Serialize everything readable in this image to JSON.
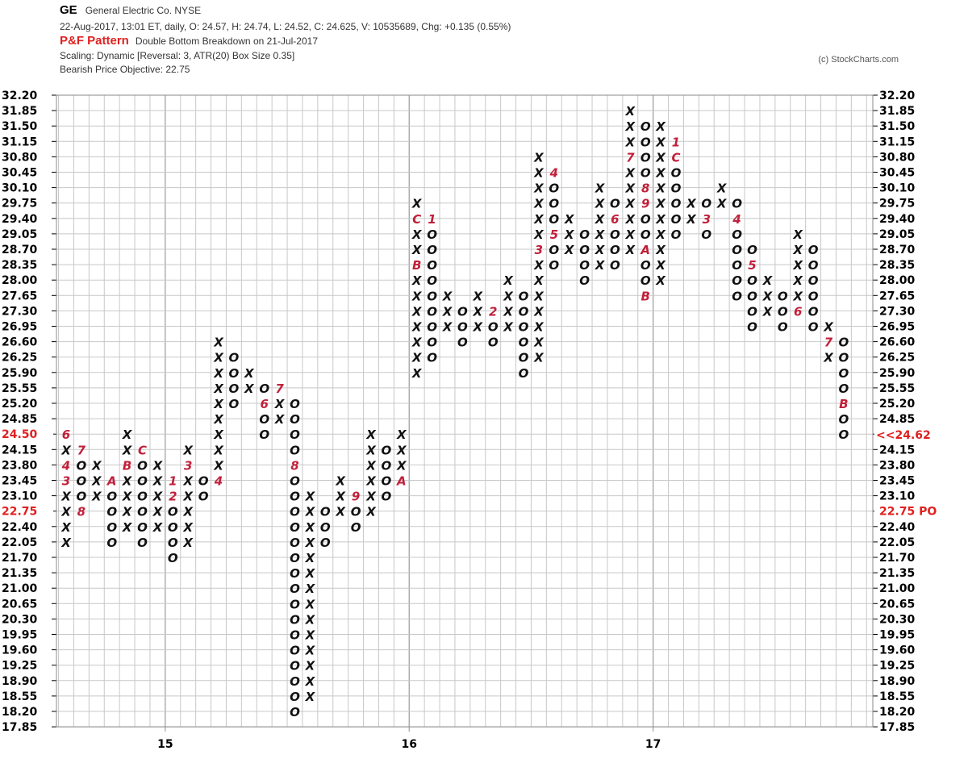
{
  "header": {
    "symbol": "GE",
    "company": "General Electric Co.  NYSE",
    "quote_line": "22-Aug-2017, 13:01 ET, daily, O: 24.57, H: 24.74, L: 24.52, C: 24.625, V: 10535689, Chg: +0.135 (0.55%)",
    "pf_label": "P&F Pattern",
    "pf_pattern": "Double Bottom Breakdown on 21-Jul-2017",
    "scaling": "Scaling: Dynamic [Reversal: 3, ATR(20) Box Size 0.35]",
    "objective": "Bearish Price Objective: 22.75",
    "copyright": "(c) StockCharts.com"
  },
  "colors": {
    "mark": "#111111",
    "month_marker": "#c0203a",
    "highlight": "#e02020",
    "grid": "#c8c8c8",
    "major_grid": "#a0a0a0"
  },
  "chart_data": {
    "type": "point-and-figure",
    "box_size": 0.35,
    "reversal": 3,
    "ylim": [
      17.85,
      32.2
    ],
    "y_ticks": [
      "32.20",
      "31.85",
      "31.50",
      "31.15",
      "30.80",
      "30.45",
      "30.10",
      "29.75",
      "29.40",
      "29.05",
      "28.70",
      "28.35",
      "28.00",
      "27.65",
      "27.30",
      "26.95",
      "26.60",
      "26.25",
      "25.90",
      "25.55",
      "25.20",
      "24.85",
      "24.50",
      "24.15",
      "23.80",
      "23.45",
      "23.10",
      "22.75",
      "22.40",
      "22.05",
      "21.70",
      "21.35",
      "21.00",
      "20.65",
      "20.30",
      "19.95",
      "19.60",
      "19.25",
      "18.90",
      "18.55",
      "18.20",
      "17.85"
    ],
    "highlight_left": {
      "price": "24.50",
      "label": "24.50"
    },
    "highlight_po_left": {
      "price": "22.75",
      "label": "22.75"
    },
    "right_current": "<<24.62",
    "right_po": "22.75 PO",
    "year_labels": [
      {
        "label": "15",
        "col": 7
      },
      {
        "label": "16",
        "col": 23
      },
      {
        "label": "17",
        "col": 39
      }
    ],
    "columns": [
      {
        "col": 0,
        "type": "X",
        "from": "22.05",
        "to": "24.50",
        "markers": {
          "24.50": "6",
          "23.80": "4",
          "23.45": "3"
        }
      },
      {
        "col": 1,
        "type": "O",
        "from": "22.75",
        "to": "24.15",
        "markers": {
          "24.15": "7",
          "22.75": "8"
        }
      },
      {
        "col": 2,
        "type": "X",
        "from": "23.10",
        "to": "23.80"
      },
      {
        "col": 3,
        "type": "O",
        "from": "22.05",
        "to": "23.45",
        "markers": {
          "23.45": "A"
        }
      },
      {
        "col": 4,
        "type": "X",
        "from": "22.40",
        "to": "24.50",
        "markers": {
          "23.80": "B"
        }
      },
      {
        "col": 5,
        "type": "O",
        "from": "22.05",
        "to": "24.15",
        "markers": {
          "24.15": "C"
        }
      },
      {
        "col": 6,
        "type": "X",
        "from": "22.40",
        "to": "23.80"
      },
      {
        "col": 7,
        "type": "O",
        "from": "21.70",
        "to": "23.45",
        "markers": {
          "23.45": "1",
          "23.10": "2"
        }
      },
      {
        "col": 8,
        "type": "X",
        "from": "22.05",
        "to": "24.15",
        "markers": {
          "23.80": "3"
        }
      },
      {
        "col": 9,
        "type": "O",
        "from": "23.10",
        "to": "23.45"
      },
      {
        "col": 10,
        "type": "X",
        "from": "23.45",
        "to": "26.60",
        "markers": {
          "23.45": "4"
        }
      },
      {
        "col": 11,
        "type": "O",
        "from": "25.20",
        "to": "26.25"
      },
      {
        "col": 12,
        "type": "X",
        "from": "25.55",
        "to": "25.90"
      },
      {
        "col": 13,
        "type": "O",
        "from": "24.50",
        "to": "25.55",
        "markers": {
          "25.20": "6"
        }
      },
      {
        "col": 14,
        "type": "X",
        "from": "24.85",
        "to": "25.55",
        "markers": {
          "25.55": "7"
        }
      },
      {
        "col": 15,
        "type": "O",
        "from": "18.20",
        "to": "25.20",
        "markers": {
          "23.80": "8"
        }
      },
      {
        "col": 16,
        "type": "X",
        "from": "18.55",
        "to": "23.10"
      },
      {
        "col": 17,
        "type": "O",
        "from": "22.05",
        "to": "22.75"
      },
      {
        "col": 18,
        "type": "X",
        "from": "22.75",
        "to": "23.45"
      },
      {
        "col": 19,
        "type": "O",
        "from": "22.40",
        "to": "23.10",
        "markers": {
          "23.10": "9"
        }
      },
      {
        "col": 20,
        "type": "X",
        "from": "22.75",
        "to": "24.50"
      },
      {
        "col": 21,
        "type": "O",
        "from": "23.10",
        "to": "24.15"
      },
      {
        "col": 22,
        "type": "X",
        "from": "23.45",
        "to": "24.50",
        "markers": {
          "23.45": "A"
        }
      },
      {
        "col": 23,
        "type": "X",
        "from": "25.90",
        "to": "29.75",
        "markers": {
          "29.40": "C",
          "28.35": "B"
        }
      },
      {
        "col": 24,
        "type": "O",
        "from": "26.25",
        "to": "29.40",
        "markers": {
          "29.40": "1"
        }
      },
      {
        "col": 25,
        "type": "X",
        "from": "26.95",
        "to": "27.65"
      },
      {
        "col": 26,
        "type": "O",
        "from": "26.60",
        "to": "27.30"
      },
      {
        "col": 27,
        "type": "X",
        "from": "26.95",
        "to": "27.65"
      },
      {
        "col": 28,
        "type": "O",
        "from": "26.60",
        "to": "27.30",
        "markers": {
          "27.30": "2"
        }
      },
      {
        "col": 29,
        "type": "X",
        "from": "26.95",
        "to": "28.00"
      },
      {
        "col": 30,
        "type": "O",
        "from": "25.90",
        "to": "27.65"
      },
      {
        "col": 31,
        "type": "X",
        "from": "26.25",
        "to": "30.80",
        "markers": {
          "28.70": "3"
        }
      },
      {
        "col": 32,
        "type": "O",
        "from": "28.35",
        "to": "30.45",
        "markers": {
          "30.45": "4",
          "29.05": "5"
        }
      },
      {
        "col": 33,
        "type": "X",
        "from": "28.70",
        "to": "29.40"
      },
      {
        "col": 34,
        "type": "O",
        "from": "28.00",
        "to": "29.05"
      },
      {
        "col": 35,
        "type": "X",
        "from": "28.35",
        "to": "30.10"
      },
      {
        "col": 36,
        "type": "O",
        "from": "28.35",
        "to": "29.75",
        "markers": {
          "29.40": "6"
        }
      },
      {
        "col": 37,
        "type": "X",
        "from": "28.70",
        "to": "31.85",
        "markers": {
          "30.80": "7"
        }
      },
      {
        "col": 38,
        "type": "O",
        "from": "27.65",
        "to": "31.50",
        "markers": {
          "30.10": "8",
          "29.75": "9",
          "28.70": "A",
          "27.65": "B"
        }
      },
      {
        "col": 39,
        "type": "X",
        "from": "28.00",
        "to": "31.50"
      },
      {
        "col": 40,
        "type": "O",
        "from": "29.05",
        "to": "31.15",
        "markers": {
          "31.15": "1",
          "30.80": "C"
        }
      },
      {
        "col": 41,
        "type": "X",
        "from": "29.40",
        "to": "29.75"
      },
      {
        "col": 42,
        "type": "O",
        "from": "29.05",
        "to": "29.75",
        "markers": {
          "29.40": "3"
        }
      },
      {
        "col": 43,
        "type": "X",
        "from": "29.75",
        "to": "30.10"
      },
      {
        "col": 44,
        "type": "O",
        "from": "27.65",
        "to": "29.75",
        "markers": {
          "29.40": "4"
        }
      },
      {
        "col": 45,
        "type": "O",
        "from": "26.95",
        "to": "28.70",
        "markers": {
          "28.35": "5"
        }
      },
      {
        "col": 46,
        "type": "X",
        "from": "27.30",
        "to": "28.00"
      },
      {
        "col": 47,
        "type": "O",
        "from": "26.95",
        "to": "27.65"
      },
      {
        "col": 48,
        "type": "X",
        "from": "27.30",
        "to": "29.05",
        "markers": {
          "27.30": "6"
        }
      },
      {
        "col": 49,
        "type": "O",
        "from": "26.95",
        "to": "28.70"
      },
      {
        "col": 50,
        "type": "X",
        "from": "26.25",
        "to": "26.95",
        "markers": {
          "26.60": "7"
        }
      },
      {
        "col": 51,
        "type": "O",
        "from": "24.50",
        "to": "26.60",
        "markers": {
          "25.20": "B"
        }
      }
    ]
  }
}
